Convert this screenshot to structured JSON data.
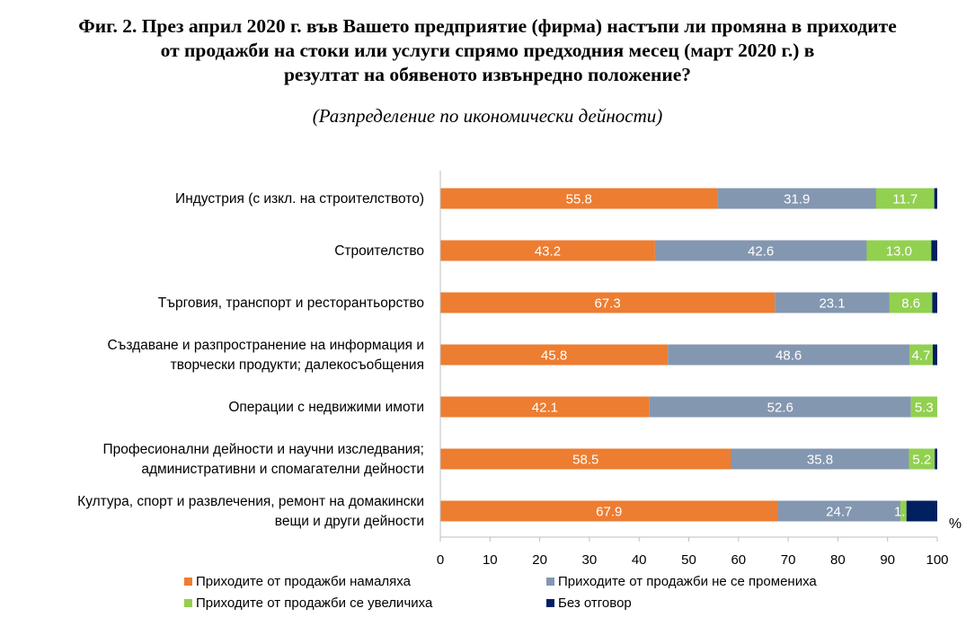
{
  "title_lines": [
    "Фиг. 2. През април 2020 г. във Вашето предприятие (фирма) настъпи ли промяна в приходите",
    "от продажби на стоки или услуги спрямо предходния месец (март 2020 г.) в",
    "резултат на обявеното извънредно положение?"
  ],
  "subtitle": "(Разпределение по икономически дейности)",
  "chart_data": {
    "type": "bar",
    "orientation": "horizontal",
    "stacked": true,
    "categories": [
      [
        "Индустрия (с изкл. на строителството)"
      ],
      [
        "Строителство"
      ],
      [
        "Търговия, транспорт и ресторантьорство"
      ],
      [
        "Създаване и разпространение на информация и",
        "творчески продукти; далекосъобщения"
      ],
      [
        "Операции с недвижими имоти"
      ],
      [
        "Професионални дейности и научни изследвания;",
        "административни и спомагателни дейности"
      ],
      [
        "Култура, спорт и развлечения, ремонт на домакински",
        "вещи и други дейности"
      ]
    ],
    "series": [
      {
        "name": "Приходите от продажби намаляха",
        "color": "#ED7D31",
        "values": [
          55.8,
          43.2,
          67.3,
          45.8,
          42.1,
          58.5,
          67.9
        ],
        "labels": [
          "55.8",
          "43.2",
          "67.3",
          "45.8",
          "42.1",
          "58.5",
          "67.9"
        ]
      },
      {
        "name": "Приходите от продажби не се промениха",
        "color": "#8497B0",
        "values": [
          31.9,
          42.6,
          23.1,
          48.6,
          52.6,
          35.8,
          24.7
        ],
        "labels": [
          "31.9",
          "42.6",
          "23.1",
          "48.6",
          "52.6",
          "35.8",
          "24.7"
        ]
      },
      {
        "name": "Приходите от продажби се увеличиха",
        "color": "#92D050",
        "values": [
          11.7,
          13.0,
          8.6,
          4.7,
          5.3,
          5.2,
          1.2
        ],
        "labels": [
          "11.7",
          "13.0",
          "8.6",
          "4.7",
          "5.3",
          "5.2",
          "1.2"
        ]
      },
      {
        "name": "Без отговор",
        "color": "#002060",
        "values": [
          0.6,
          1.2,
          1.0,
          0.9,
          0.0,
          0.5,
          6.2
        ],
        "labels": [
          "",
          "",
          "",
          "",
          "",
          "",
          ""
        ]
      }
    ],
    "xlim": [
      0,
      100
    ],
    "xticks": [
      "0",
      "10",
      "20",
      "30",
      "40",
      "50",
      "60",
      "70",
      "80",
      "90",
      "100"
    ],
    "unit": "%",
    "grid": false,
    "legend_position": "bottom"
  }
}
